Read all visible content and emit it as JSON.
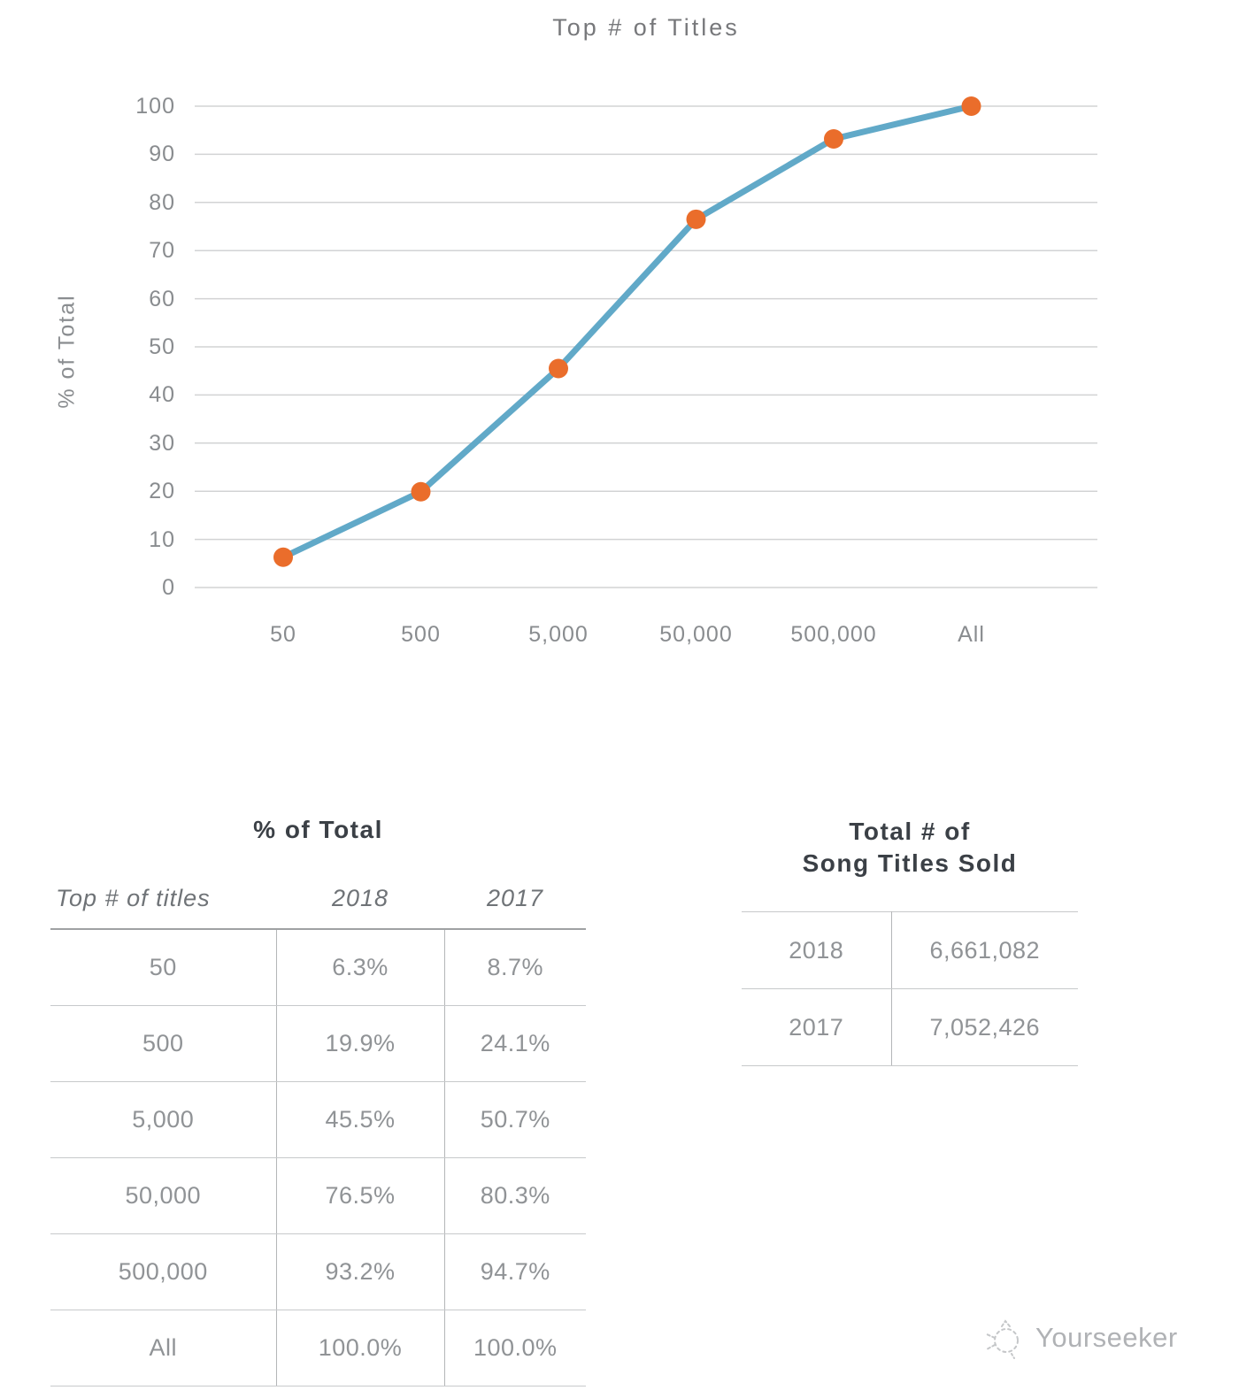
{
  "chart_data": {
    "type": "line",
    "title": "Top # of Titles",
    "xlabel": "",
    "ylabel": "% of Total",
    "categories": [
      "50",
      "500",
      "5,000",
      "50,000",
      "500,000",
      "All"
    ],
    "values": [
      6.3,
      19.9,
      45.5,
      76.5,
      93.2,
      100.0
    ],
    "ylim": [
      0,
      100
    ],
    "ytick_step": 10,
    "grid": true,
    "legend": "none"
  },
  "style": {
    "line_color": "#61a9c8",
    "marker_color": "#ea6d2b",
    "grid_color": "#d2d3d4",
    "axis_text_color": "#898c8f",
    "chart_title_color": "#77787b",
    "table_title_color": "#3b4046",
    "cell_text_color": "#909396",
    "border_color": "#c7c9cb"
  },
  "tables": {
    "percent": {
      "title": "% of Total",
      "columns": [
        "Top # of titles",
        "2018",
        "2017"
      ],
      "rows": [
        [
          "50",
          "6.3%",
          "8.7%"
        ],
        [
          "500",
          "19.9%",
          "24.1%"
        ],
        [
          "5,000",
          "45.5%",
          "50.7%"
        ],
        [
          "50,000",
          "76.5%",
          "80.3%"
        ],
        [
          "All",
          "100.0%",
          "100.0%"
        ]
      ],
      "rows_full": [
        [
          "50",
          "6.3%",
          "8.7%"
        ],
        [
          "500",
          "19.9%",
          "24.1%"
        ],
        [
          "5,000",
          "45.5%",
          "50.7%"
        ],
        [
          "50,000",
          "76.5%",
          "80.3%"
        ],
        [
          "500,000",
          "93.2%",
          "94.7%"
        ],
        [
          "All",
          "100.0%",
          "100.0%"
        ]
      ]
    },
    "totals": {
      "title_line1": "Total # of",
      "title_line2": "Song Titles Sold",
      "rows": [
        [
          "2018",
          "6,661,082"
        ],
        [
          "2017",
          "7,052,426"
        ]
      ]
    }
  },
  "watermark": {
    "label": "Yourseeker"
  }
}
